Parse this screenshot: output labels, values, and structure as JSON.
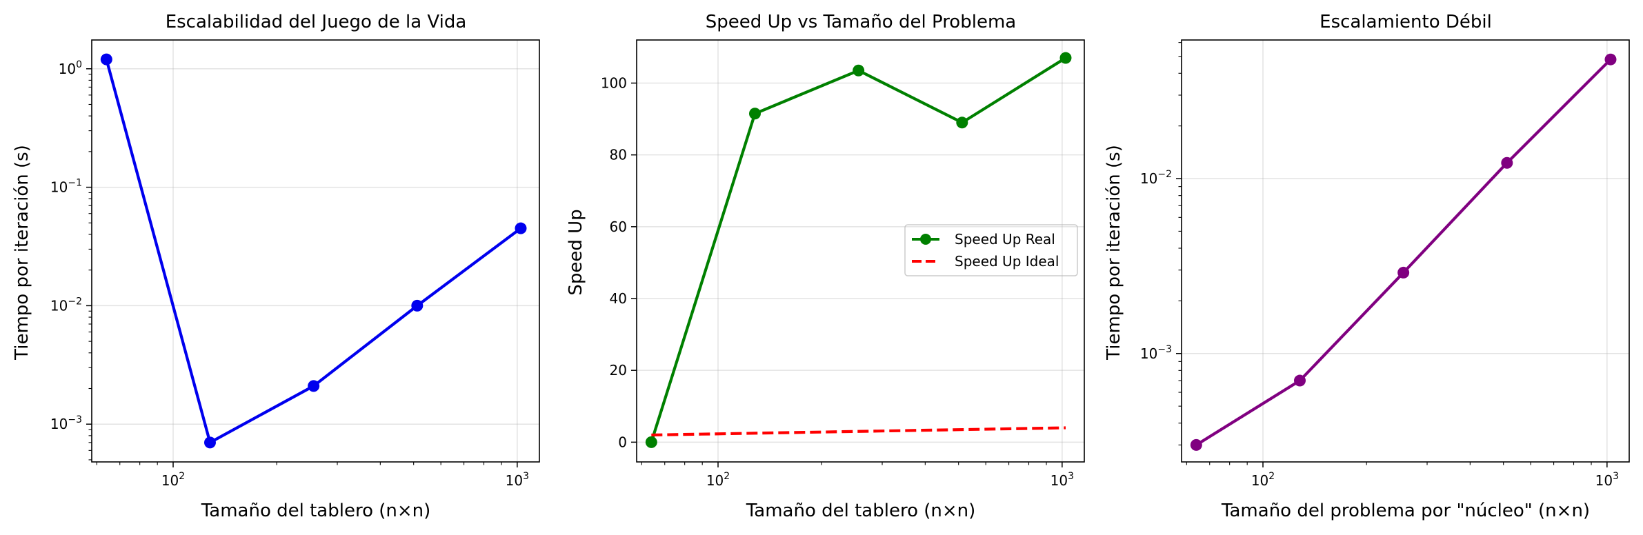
{
  "chart_data": [
    {
      "type": "line",
      "title": "Escalabilidad del Juego de la Vida",
      "xlabel": "Tamaño del tablero (n×n)",
      "ylabel": "Tiempo por iteración (s)",
      "xscale": "log",
      "yscale": "log",
      "xlim": [
        58,
        1160
      ],
      "ylim": [
        0.00048,
        1.75
      ],
      "grid": true,
      "xticks": [
        {
          "value": 100,
          "label": "10",
          "exp": "2"
        },
        {
          "value": 1000,
          "label": "10",
          "exp": "3"
        }
      ],
      "yticks": [
        {
          "value": 0.001,
          "label": "10",
          "exp": "−3"
        },
        {
          "value": 0.01,
          "label": "10",
          "exp": "−2"
        },
        {
          "value": 0.1,
          "label": "10",
          "exp": "−1"
        },
        {
          "value": 1,
          "label": "10",
          "exp": "0"
        }
      ],
      "series": [
        {
          "color": "#0000ee",
          "style": "solid",
          "x": [
            64,
            128,
            256,
            512,
            1024
          ],
          "y": [
            1.2,
            0.0007,
            0.0021,
            0.01,
            0.045
          ]
        }
      ]
    },
    {
      "type": "line",
      "title": "Speed Up vs Tamaño del Problema",
      "xlabel": "Tamaño del tablero (n×n)",
      "ylabel": "Speed Up",
      "xscale": "log",
      "yscale": "linear",
      "xlim": [
        58,
        1160
      ],
      "ylim": [
        -5.5,
        112
      ],
      "grid": true,
      "legend": "center-right",
      "xticks": [
        {
          "value": 100,
          "label": "10",
          "exp": "2"
        },
        {
          "value": 1000,
          "label": "10",
          "exp": "3"
        }
      ],
      "yticks": [
        {
          "value": 0,
          "label": "0"
        },
        {
          "value": 20,
          "label": "20"
        },
        {
          "value": 40,
          "label": "40"
        },
        {
          "value": 60,
          "label": "60"
        },
        {
          "value": 80,
          "label": "80"
        },
        {
          "value": 100,
          "label": "100"
        }
      ],
      "series": [
        {
          "name": "Speed Up Real",
          "color": "#008000",
          "style": "solid",
          "x": [
            64,
            128,
            256,
            512,
            1024
          ],
          "y": [
            0,
            91.5,
            103.5,
            89,
            107
          ]
        },
        {
          "name": "Speed Up Ideal",
          "color": "#ff0000",
          "style": "dashed",
          "x": [
            64,
            1024
          ],
          "y": [
            2,
            4
          ]
        }
      ]
    },
    {
      "type": "line",
      "title": "Escalamiento Débil",
      "xlabel": "Tamaño del problema por \"núcleo\" (n×n)",
      "ylabel": "Tiempo por iteración (s)",
      "xscale": "log",
      "yscale": "log",
      "xlim": [
        58,
        1160
      ],
      "ylim": [
        0.00024,
        0.062
      ],
      "grid": true,
      "xticks": [
        {
          "value": 100,
          "label": "10",
          "exp": "2"
        },
        {
          "value": 1000,
          "label": "10",
          "exp": "3"
        }
      ],
      "yticks": [
        {
          "value": 0.001,
          "label": "10",
          "exp": "−3"
        },
        {
          "value": 0.01,
          "label": "10",
          "exp": "−2"
        }
      ],
      "series": [
        {
          "color": "#800080",
          "style": "solid",
          "x": [
            64,
            128,
            256,
            512,
            1024
          ],
          "y": [
            0.0003,
            0.0007,
            0.0029,
            0.0123,
            0.048
          ]
        }
      ]
    }
  ]
}
